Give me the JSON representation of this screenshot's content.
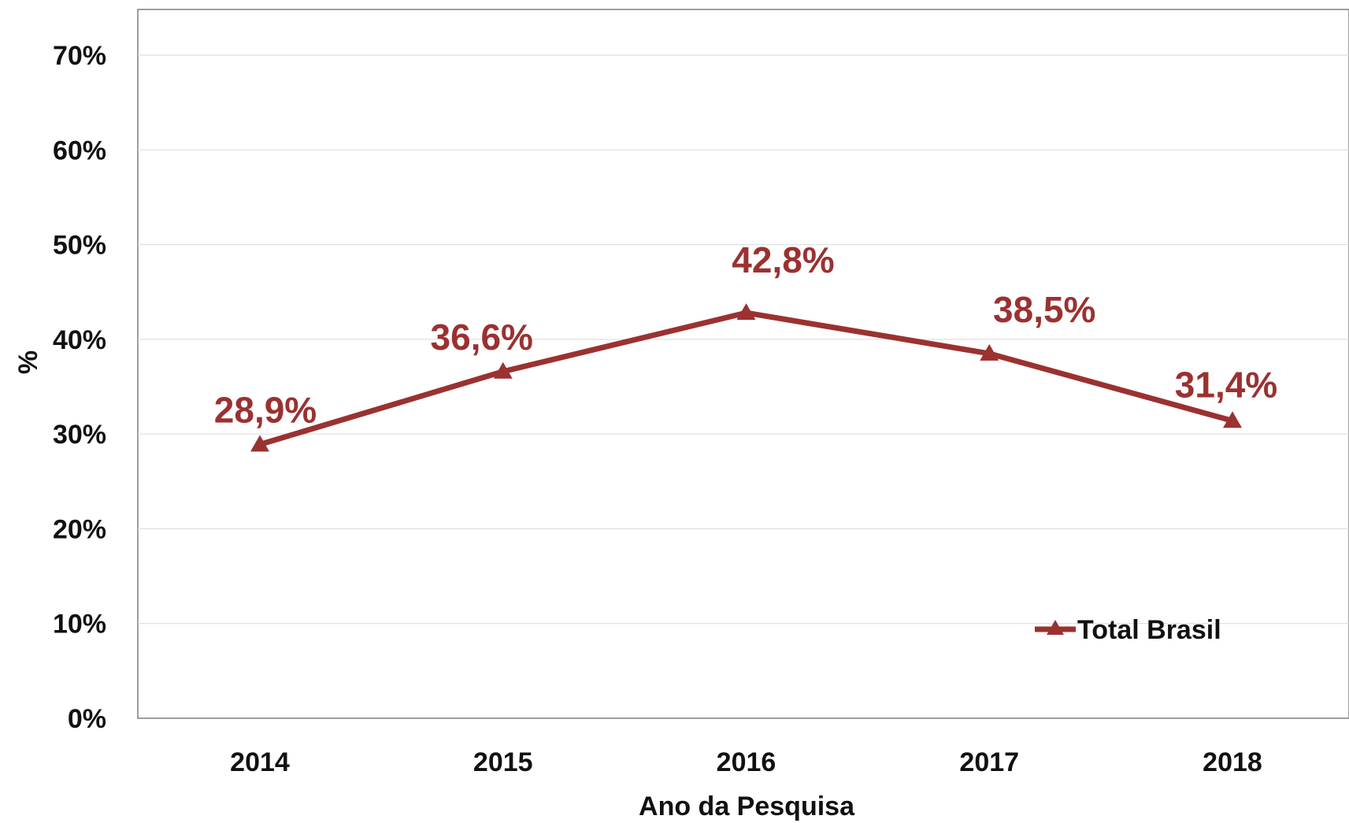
{
  "chart_data": {
    "type": "line",
    "categories": [
      "2014",
      "2015",
      "2016",
      "2017",
      "2018"
    ],
    "series": [
      {
        "name": "Total Brasil",
        "values": [
          28.9,
          36.6,
          42.8,
          38.5,
          31.4
        ],
        "data_labels": [
          "28,9%",
          "36,6%",
          "42,8%",
          "38,5%",
          "31,4%"
        ],
        "marker": "triangle",
        "color": "#9b3131"
      }
    ],
    "title": "",
    "xlabel": "Ano da Pesquisa",
    "ylabel": "%",
    "ylim": [
      0,
      70
    ],
    "yticks": [
      0,
      10,
      20,
      30,
      40,
      50,
      60,
      70
    ],
    "ytick_labels": [
      "0%",
      "10%",
      "20%",
      "30%",
      "40%",
      "50%",
      "60%",
      "70%"
    ],
    "grid": true,
    "legend_position": "bottom-right",
    "colors": {
      "series": "#9b3131",
      "text": "#111111",
      "grid": "#d9d9d9",
      "axis": "#7f7f7f"
    }
  }
}
